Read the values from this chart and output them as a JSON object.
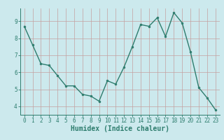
{
  "x": [
    0,
    1,
    2,
    3,
    4,
    5,
    6,
    7,
    8,
    9,
    10,
    11,
    12,
    13,
    14,
    15,
    16,
    17,
    18,
    19,
    20,
    21,
    22,
    23
  ],
  "y": [
    8.7,
    7.6,
    6.5,
    6.4,
    5.8,
    5.2,
    5.2,
    4.7,
    4.6,
    4.3,
    5.5,
    5.3,
    6.3,
    7.5,
    8.8,
    8.7,
    9.2,
    8.1,
    9.5,
    8.9,
    7.2,
    5.1,
    4.5,
    3.8
  ],
  "line_color": "#2e7d6e",
  "marker": "o",
  "marker_size": 2.0,
  "line_width": 1.0,
  "xlabel": "Humidex (Indice chaleur)",
  "xlabel_fontsize": 7,
  "bg_color": "#cce9ed",
  "grid_color": "#c4a0a0",
  "axis_color": "#2e7d6e",
  "tick_color": "#2e7d6e",
  "ylim": [
    3.5,
    9.75
  ],
  "xlim": [
    -0.5,
    23.5
  ],
  "yticks": [
    4,
    5,
    6,
    7,
    8,
    9
  ],
  "xticks": [
    0,
    1,
    2,
    3,
    4,
    5,
    6,
    7,
    8,
    9,
    10,
    11,
    12,
    13,
    14,
    15,
    16,
    17,
    18,
    19,
    20,
    21,
    22,
    23
  ],
  "tick_fontsize": 5.5
}
